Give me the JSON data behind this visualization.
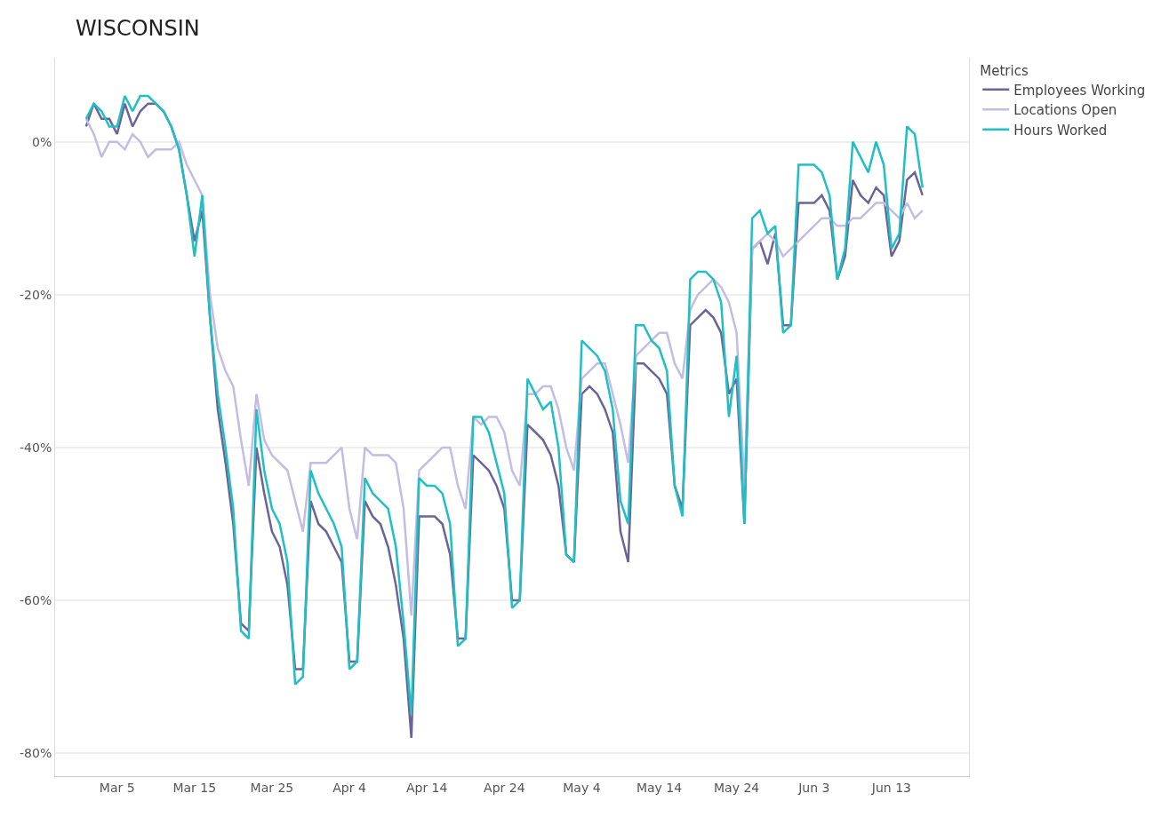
{
  "chart_data": {
    "type": "line",
    "title": "WISCONSIN",
    "legend_title": "Metrics",
    "x": [
      "--03-01",
      "--03-02",
      "--03-03",
      "--03-04",
      "--03-05",
      "--03-06",
      "--03-07",
      "--03-08",
      "--03-09",
      "--03-10",
      "--03-11",
      "--03-12",
      "--03-13",
      "--03-14",
      "--03-15",
      "--03-16",
      "--03-17",
      "--03-18",
      "--03-19",
      "--03-20",
      "--03-21",
      "--03-22",
      "--03-23",
      "--03-24",
      "--03-25",
      "--03-26",
      "--03-27",
      "--03-28",
      "--03-29",
      "--03-30",
      "--03-31",
      "--04-01",
      "--04-02",
      "--04-03",
      "--04-04",
      "--04-05",
      "--04-06",
      "--04-07",
      "--04-08",
      "--04-09",
      "--04-10",
      "--04-11",
      "--04-12",
      "--04-13",
      "--04-14",
      "--04-15",
      "--04-16",
      "--04-17",
      "--04-18",
      "--04-19",
      "--04-20",
      "--04-21",
      "--04-22",
      "--04-23",
      "--04-24",
      "--04-25",
      "--04-26",
      "--04-27",
      "--04-28",
      "--04-29",
      "--04-30",
      "--05-01",
      "--05-02",
      "--05-03",
      "--05-04",
      "--05-05",
      "--05-06",
      "--05-07",
      "--05-08",
      "--05-09",
      "--05-10",
      "--05-11",
      "--05-12",
      "--05-13",
      "--05-14",
      "--05-15",
      "--05-16",
      "--05-17",
      "--05-18",
      "--05-19",
      "--05-20",
      "--05-21",
      "--05-22",
      "--05-23",
      "--05-24",
      "--05-25",
      "--05-26",
      "--05-27",
      "--05-28",
      "--05-29",
      "--05-30",
      "--05-31",
      "--06-01",
      "--06-02",
      "--06-03",
      "--06-04",
      "--06-05",
      "--06-06",
      "--06-07",
      "--06-08",
      "--06-09",
      "--06-10",
      "--06-11",
      "--06-12",
      "--06-13",
      "--06-14",
      "--06-15",
      "--06-16",
      "--06-17"
    ],
    "series": [
      {
        "name": "Employees Working",
        "color": "#6a6497",
        "values": [
          2,
          5,
          3,
          3,
          1,
          5,
          2,
          4,
          5,
          5,
          4,
          2,
          -1,
          -7,
          -13,
          -9,
          -23,
          -35,
          -42,
          -50,
          -63,
          -64,
          -40,
          -46,
          -51,
          -53,
          -58,
          -69,
          -69,
          -47,
          -50,
          -51,
          -53,
          -55,
          -68,
          -68,
          -47,
          -49,
          -50,
          -53,
          -58,
          -65,
          -78,
          -49,
          -49,
          -49,
          -50,
          -54,
          -65,
          -65,
          -41,
          -42,
          -43,
          -45,
          -48,
          -60,
          -60,
          -37,
          -38,
          -39,
          -41,
          -45,
          -54,
          -55,
          -33,
          -32,
          -33,
          -35,
          -38,
          -51,
          -55,
          -29,
          -29,
          -30,
          -31,
          -33,
          -45,
          -48,
          -24,
          -23,
          -22,
          -23,
          -25,
          -33,
          -31,
          -50,
          -14,
          -13,
          -16,
          -12,
          -24,
          -24,
          -8,
          -8,
          -8,
          -7,
          -9,
          -18,
          -15,
          -5,
          -7,
          -8,
          -6,
          -7,
          -15,
          -13,
          -5,
          -4,
          -7
        ]
      },
      {
        "name": "Locations Open",
        "color": "#c4bce4",
        "values": [
          3,
          1,
          -2,
          0,
          0,
          -1,
          1,
          0,
          -2,
          -1,
          -1,
          -1,
          0,
          -3,
          -5,
          -7,
          -20,
          -27,
          -30,
          -32,
          -39,
          -45,
          -33,
          -39,
          -41,
          -42,
          -43,
          -47,
          -51,
          -42,
          -42,
          -42,
          -41,
          -40,
          -48,
          -52,
          -40,
          -41,
          -41,
          -41,
          -42,
          -48,
          -62,
          -43,
          -42,
          -41,
          -40,
          -40,
          -45,
          -48,
          -36,
          -37,
          -36,
          -36,
          -38,
          -43,
          -45,
          -33,
          -33,
          -32,
          -32,
          -35,
          -40,
          -43,
          -31,
          -30,
          -29,
          -29,
          -33,
          -37,
          -42,
          -28,
          -27,
          -26,
          -25,
          -25,
          -29,
          -31,
          -22,
          -20,
          -19,
          -18,
          -19,
          -21,
          -25,
          -45,
          -14,
          -13,
          -12,
          -13,
          -15,
          -14,
          -13,
          -12,
          -11,
          -10,
          -10,
          -11,
          -11,
          -10,
          -10,
          -9,
          -8,
          -8,
          -9,
          -10,
          -8,
          -10,
          -9
        ]
      },
      {
        "name": "Hours Worked",
        "color": "#20bfc4",
        "values": [
          3,
          5,
          4,
          2,
          2,
          6,
          4,
          6,
          6,
          5,
          4,
          2,
          -1,
          -7,
          -15,
          -7,
          -23,
          -33,
          -40,
          -48,
          -64,
          -65,
          -35,
          -43,
          -48,
          -50,
          -55,
          -71,
          -70,
          -43,
          -46,
          -48,
          -50,
          -53,
          -69,
          -68,
          -44,
          -46,
          -47,
          -48,
          -53,
          -63,
          -75,
          -44,
          -45,
          -45,
          -46,
          -50,
          -66,
          -65,
          -36,
          -36,
          -38,
          -42,
          -46,
          -61,
          -60,
          -31,
          -33,
          -35,
          -34,
          -40,
          -54,
          -55,
          -26,
          -27,
          -28,
          -30,
          -35,
          -47,
          -50,
          -24,
          -24,
          -26,
          -27,
          -30,
          -45,
          -49,
          -18,
          -17,
          -17,
          -18,
          -21,
          -36,
          -28,
          -50,
          -10,
          -9,
          -12,
          -11,
          -25,
          -24,
          -3,
          -3,
          -3,
          -4,
          -7,
          -18,
          -14,
          0,
          -2,
          -4,
          0,
          -3,
          -14,
          -12,
          2,
          1,
          -6
        ]
      }
    ],
    "xlim": [
      "--02-25",
      "--06-23"
    ],
    "xticks": [
      {
        "value": "--03-05",
        "label": "Mar 5"
      },
      {
        "value": "--03-15",
        "label": "Mar 15"
      },
      {
        "value": "--03-25",
        "label": "Mar 25"
      },
      {
        "value": "--04-04",
        "label": "Apr 4"
      },
      {
        "value": "--04-14",
        "label": "Apr 14"
      },
      {
        "value": "--04-24",
        "label": "Apr 24"
      },
      {
        "value": "--05-04",
        "label": "May 4"
      },
      {
        "value": "--05-14",
        "label": "May 14"
      },
      {
        "value": "--05-24",
        "label": "May 24"
      },
      {
        "value": "--06-03",
        "label": "Jun 3"
      },
      {
        "value": "--06-13",
        "label": "Jun 13"
      }
    ],
    "ylim": [
      -83,
      11
    ],
    "yticks": [
      {
        "value": 0,
        "label": "0%"
      },
      {
        "value": -20,
        "label": "-20%"
      },
      {
        "value": -40,
        "label": "-40%"
      },
      {
        "value": -60,
        "label": "-60%"
      },
      {
        "value": -80,
        "label": "-80%"
      }
    ],
    "grid": "y",
    "legend": "top right",
    "marker": "none",
    "line_style": "solid"
  }
}
